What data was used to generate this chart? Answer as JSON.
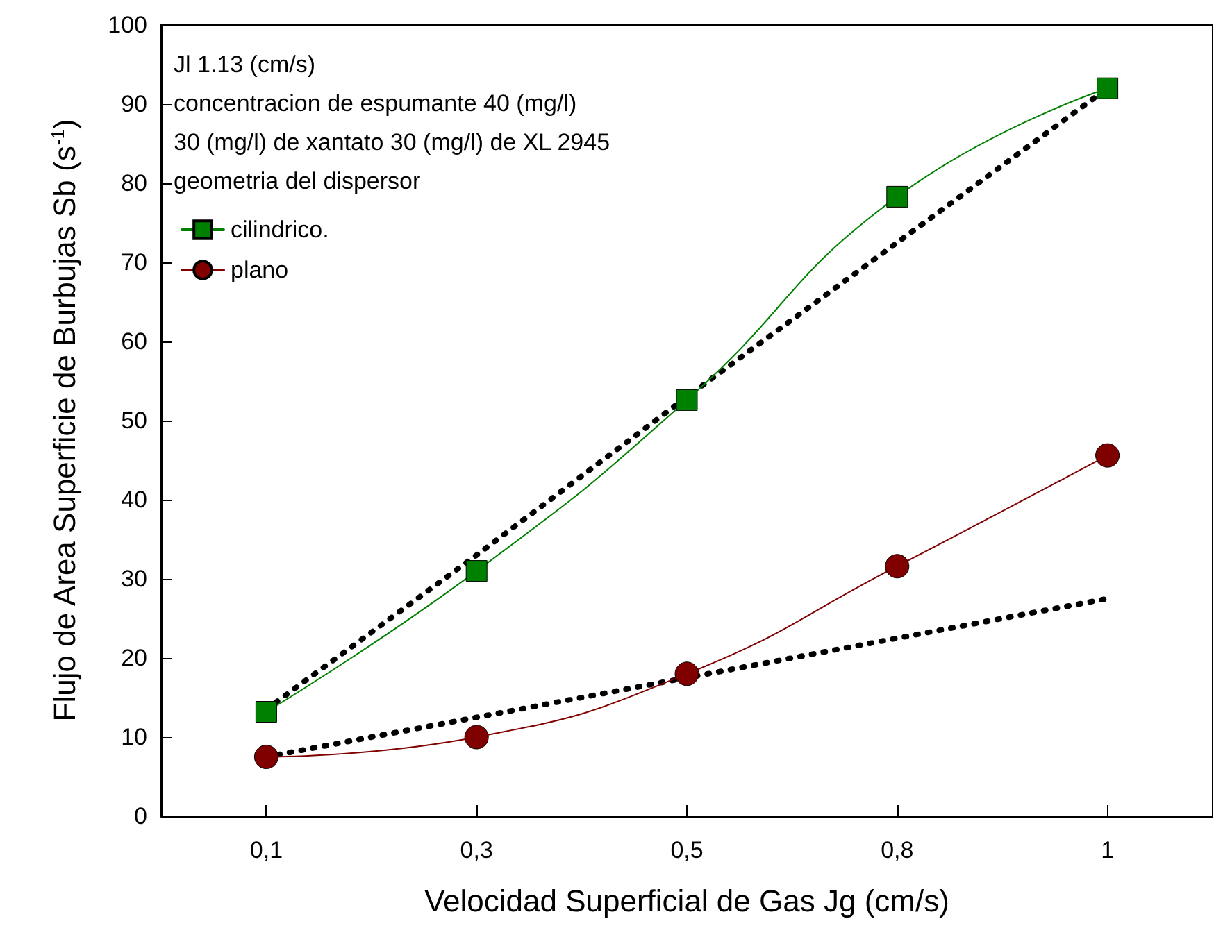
{
  "chart_data": {
    "type": "line",
    "xlabel": "Velocidad Superficial de Gas Jg (cm/s)",
    "ylabel": "Flujo de Area Superficie de Burbujas Sb (s$^{-1}$)",
    "annotations": [
      "Jl 1.13 (cm/s)",
      "concentracion de espumante 40 (mg/l)",
      "30 (mg/l) de xantato 30 (mg/l) de XL 2945",
      "geometria del dispersor"
    ],
    "categories": [
      "0,1",
      "0,3",
      "0,5",
      "0,8",
      "1"
    ],
    "series": [
      {
        "name": "cilindrico.",
        "color": "#008000",
        "marker": "square",
        "line_style": "solid",
        "values": [
          13.2,
          31,
          52.6,
          78.3,
          92
        ]
      },
      {
        "name": "plano",
        "color": "#800000",
        "marker": "circle",
        "line_style": "solid",
        "values": [
          7.5,
          10,
          18,
          31.6,
          45.6
        ]
      },
      {
        "color": "#000000",
        "marker": "none",
        "line_style": "dotted",
        "values": [
          13.5,
          33,
          53,
          72.5,
          92
        ]
      },
      {
        "color": "#000000",
        "marker": "none",
        "line_style": "dotted",
        "values": [
          7.5,
          12.5,
          17.5,
          22.5,
          27.5
        ]
      }
    ],
    "ylim": [
      0,
      100
    ],
    "yticks": [
      0,
      10,
      20,
      30,
      40,
      50,
      60,
      70,
      80,
      90,
      100
    ],
    "grid": false,
    "legend": "top left"
  }
}
